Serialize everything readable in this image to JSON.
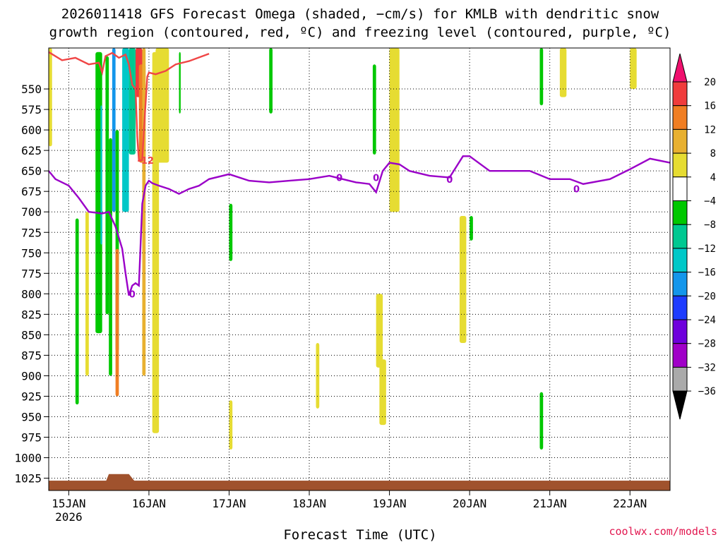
{
  "chart_data": {
    "type": "heatmap",
    "title_line1": "2026011418 GFS Forecast Omega (shaded, −cm/s) for KMLB with dendritic snow",
    "title_line2": "growth region (contoured, red, ºC) and freezing level (contoured, purple, ºC)",
    "xlabel": "Forecast Time (UTC)",
    "credit": "coolwx.com/models",
    "x_range": [
      "2026-01-14T18:00",
      "2026-01-22T12:00"
    ],
    "x_ticks": [
      {
        "label": "15JAN",
        "sub": "2026",
        "time": "2026-01-15T00:00"
      },
      {
        "label": "16JAN",
        "sub": "",
        "time": "2026-01-16T00:00"
      },
      {
        "label": "17JAN",
        "sub": "",
        "time": "2026-01-17T00:00"
      },
      {
        "label": "18JAN",
        "sub": "",
        "time": "2026-01-18T00:00"
      },
      {
        "label": "19JAN",
        "sub": "",
        "time": "2026-01-19T00:00"
      },
      {
        "label": "20JAN",
        "sub": "",
        "time": "2026-01-20T00:00"
      },
      {
        "label": "21JAN",
        "sub": "",
        "time": "2026-01-21T00:00"
      },
      {
        "label": "22JAN",
        "sub": "",
        "time": "2026-01-22T00:00"
      }
    ],
    "y_ticks": [
      "550",
      "575",
      "600",
      "625",
      "650",
      "675",
      "700",
      "725",
      "750",
      "775",
      "800",
      "825",
      "850",
      "875",
      "900",
      "925",
      "950",
      "975",
      "1000",
      "1025"
    ],
    "y_range_hpa": [
      500,
      1040
    ],
    "grid": true,
    "colorbar": {
      "labels": [
        "20",
        "16",
        "12",
        "8",
        "4",
        "−4",
        "−8",
        "−12",
        "−16",
        "−20",
        "−24",
        "−28",
        "−32",
        "−36"
      ],
      "colors": [
        "#f0106e",
        "#f03c3c",
        "#f07e23",
        "#e8b030",
        "#e6dc32",
        "#ffffff",
        "#00c800",
        "#00c891",
        "#00c8c8",
        "#1496eb",
        "#1e3cff",
        "#6e00dc",
        "#a000c8",
        "#aaaaaa",
        "#000000"
      ]
    },
    "colors": {
      "yellow": "#e6dc32",
      "gold": "#e8b030",
      "orange": "#f07e23",
      "red": "#f03c3c",
      "green": "#00c800",
      "teal": "#00c891",
      "cyan": "#00c8c8",
      "blue": "#1496eb",
      "navy": "#1e3cff",
      "dendritic_contour": "#f04646",
      "freezing_contour": "#9a00c8",
      "terrain": "#a0522d"
    },
    "contour_labels": [
      {
        "text": "-12",
        "color": "dendritic_contour",
        "time": "2026-01-15T23:00",
        "p": 637
      },
      {
        "text": "0",
        "color": "freezing_contour",
        "time": "2026-01-15T19:00",
        "p": 800
      },
      {
        "text": "0",
        "color": "freezing_contour",
        "time": "2026-01-18T09:00",
        "p": 658
      },
      {
        "text": "0",
        "color": "freezing_contour",
        "time": "2026-01-18T20:00",
        "p": 658
      },
      {
        "text": "0",
        "color": "freezing_contour",
        "time": "2026-01-19T18:00",
        "p": 660
      },
      {
        "text": "0",
        "color": "freezing_contour",
        "time": "2026-01-21T08:00",
        "p": 672
      }
    ],
    "freezing_level_hpa": {
      "time": [
        "2026-01-14T18:00",
        "2026-01-14T20:00",
        "2026-01-15T00:00",
        "2026-01-15T03:00",
        "2026-01-15T06:00",
        "2026-01-15T10:00",
        "2026-01-15T12:00",
        "2026-01-15T14:00",
        "2026-01-15T16:00",
        "2026-01-15T17:00",
        "2026-01-15T18:00",
        "2026-01-15T19:00",
        "2026-01-15T20:00",
        "2026-01-15T21:00",
        "2026-01-15T22:00",
        "2026-01-15T23:00",
        "2026-01-16T00:00",
        "2026-01-16T01:00",
        "2026-01-16T03:00",
        "2026-01-16T06:00",
        "2026-01-16T09:00",
        "2026-01-16T12:00",
        "2026-01-16T15:00",
        "2026-01-16T18:00",
        "2026-01-17T00:00",
        "2026-01-17T06:00",
        "2026-01-17T12:00",
        "2026-01-17T18:00",
        "2026-01-18T00:00",
        "2026-01-18T06:00",
        "2026-01-18T10:00",
        "2026-01-18T14:00",
        "2026-01-18T18:00",
        "2026-01-18T20:00",
        "2026-01-18T22:00",
        "2026-01-19T00:00",
        "2026-01-19T03:00",
        "2026-01-19T06:00",
        "2026-01-19T12:00",
        "2026-01-19T18:00",
        "2026-01-19T22:00",
        "2026-01-20T00:00",
        "2026-01-20T06:00",
        "2026-01-20T12:00",
        "2026-01-20T18:00",
        "2026-01-21T00:00",
        "2026-01-21T06:00",
        "2026-01-21T10:00",
        "2026-01-21T18:00",
        "2026-01-22T00:00",
        "2026-01-22T06:00",
        "2026-01-22T12:00"
      ],
      "p": [
        650,
        660,
        668,
        683,
        700,
        702,
        700,
        718,
        745,
        775,
        802,
        790,
        787,
        790,
        690,
        668,
        662,
        665,
        668,
        672,
        678,
        672,
        668,
        660,
        654,
        662,
        664,
        662,
        660,
        656,
        660,
        664,
        666,
        676,
        650,
        640,
        642,
        650,
        656,
        658,
        632,
        632,
        650,
        650,
        650,
        660,
        660,
        666,
        660,
        648,
        635,
        640
      ]
    },
    "dendritic_level_hpa": {
      "time": [
        "2026-01-14T18:00",
        "2026-01-14T22:00",
        "2026-01-15T02:00",
        "2026-01-15T06:00",
        "2026-01-15T09:00",
        "2026-01-15T10:00",
        "2026-01-15T11:00",
        "2026-01-15T13:00",
        "2026-01-15T15:00",
        "2026-01-15T17:00",
        "2026-01-15T18:00",
        "2026-01-15T19:00",
        "2026-01-15T20:00",
        "2026-01-15T20:30",
        "2026-01-15T21:00",
        "2026-01-15T22:00",
        "2026-01-15T22:30",
        "2026-01-15T23:30",
        "2026-01-16T00:00",
        "2026-01-16T02:00",
        "2026-01-16T05:00",
        "2026-01-16T08:00",
        "2026-01-16T12:00",
        "2026-01-16T18:00"
      ],
      "p": [
        505,
        515,
        512,
        520,
        518,
        530,
        510,
        506,
        512,
        508,
        520,
        545,
        550,
        608,
        637,
        637,
        600,
        535,
        530,
        532,
        528,
        520,
        516,
        507
      ]
    },
    "omega_patches": [
      {
        "color": "green",
        "time": [
          "2026-01-15T02:00",
          "2026-01-15T03:00"
        ],
        "p": [
          708,
          935
        ]
      },
      {
        "color": "green",
        "time": [
          "2026-01-15T08:00",
          "2026-01-15T10:00"
        ],
        "p": [
          505,
          848
        ]
      },
      {
        "color": "cyan",
        "time": [
          "2026-01-15T09:30",
          "2026-01-15T10:00"
        ],
        "p": [
          570,
          740
        ]
      },
      {
        "color": "green",
        "time": [
          "2026-01-15T11:00",
          "2026-01-15T12:00"
        ],
        "p": [
          510,
          825
        ]
      },
      {
        "color": "green",
        "time": [
          "2026-01-15T12:00",
          "2026-01-15T13:00"
        ],
        "p": [
          610,
          900
        ]
      },
      {
        "color": "blue",
        "time": [
          "2026-01-15T13:00",
          "2026-01-15T14:00"
        ],
        "p": [
          500,
          700
        ]
      },
      {
        "color": "green",
        "time": [
          "2026-01-15T14:00",
          "2026-01-15T15:00"
        ],
        "p": [
          600,
          870
        ]
      },
      {
        "color": "cyan",
        "time": [
          "2026-01-15T16:00",
          "2026-01-15T18:00"
        ],
        "p": [
          500,
          700
        ]
      },
      {
        "color": "teal",
        "time": [
          "2026-01-15T18:00",
          "2026-01-15T20:00"
        ],
        "p": [
          500,
          630
        ]
      },
      {
        "color": "red",
        "time": [
          "2026-01-15T20:00",
          "2026-01-15T22:00"
        ],
        "p": [
          500,
          560
        ]
      },
      {
        "color": "orange",
        "time": [
          "2026-01-15T21:00",
          "2026-01-15T23:00"
        ],
        "p": [
          520,
          640
        ]
      },
      {
        "color": "gold",
        "time": [
          "2026-01-15T22:00",
          "2026-01-15T23:00"
        ],
        "p": [
          500,
          900
        ]
      },
      {
        "color": "orange",
        "time": [
          "2026-01-15T14:00",
          "2026-01-15T15:00"
        ],
        "p": [
          745,
          925
        ]
      },
      {
        "color": "yellow",
        "time": [
          "2026-01-16T01:00",
          "2026-01-16T03:00"
        ],
        "p": [
          505,
          970
        ]
      },
      {
        "color": "yellow",
        "time": [
          "2026-01-16T02:00",
          "2026-01-16T06:00"
        ],
        "p": [
          500,
          640
        ]
      },
      {
        "color": "yellow",
        "time": [
          "2026-01-14T18:00",
          "2026-01-14T19:00"
        ],
        "p": [
          500,
          620
        ]
      },
      {
        "color": "yellow",
        "time": [
          "2026-01-15T05:00",
          "2026-01-15T06:00"
        ],
        "p": [
          700,
          900
        ]
      },
      {
        "color": "green",
        "time": [
          "2026-01-16T09:00",
          "2026-01-16T09:30"
        ],
        "p": [
          505,
          580
        ]
      },
      {
        "color": "green",
        "time": [
          "2026-01-17T00:00",
          "2026-01-17T01:00"
        ],
        "p": [
          690,
          760
        ]
      },
      {
        "color": "yellow",
        "time": [
          "2026-01-17T00:00",
          "2026-01-17T01:00"
        ],
        "p": [
          930,
          990
        ]
      },
      {
        "color": "green",
        "time": [
          "2026-01-17T12:00",
          "2026-01-17T13:00"
        ],
        "p": [
          500,
          580
        ]
      },
      {
        "color": "yellow",
        "time": [
          "2026-01-18T02:00",
          "2026-01-18T03:00"
        ],
        "p": [
          860,
          940
        ]
      },
      {
        "color": "green",
        "time": [
          "2026-01-18T19:00",
          "2026-01-18T20:00"
        ],
        "p": [
          520,
          630
        ]
      },
      {
        "color": "yellow",
        "time": [
          "2026-01-18T20:00",
          "2026-01-18T22:00"
        ],
        "p": [
          800,
          890
        ]
      },
      {
        "color": "yellow",
        "time": [
          "2026-01-18T21:00",
          "2026-01-18T23:00"
        ],
        "p": [
          880,
          960
        ]
      },
      {
        "color": "yellow",
        "time": [
          "2026-01-19T00:00",
          "2026-01-19T03:00"
        ],
        "p": [
          500,
          700
        ]
      },
      {
        "color": "yellow",
        "time": [
          "2026-01-19T21:00",
          "2026-01-19T23:00"
        ],
        "p": [
          705,
          860
        ]
      },
      {
        "color": "green",
        "time": [
          "2026-01-20T00:00",
          "2026-01-20T01:00"
        ],
        "p": [
          705,
          735
        ]
      },
      {
        "color": "green",
        "time": [
          "2026-01-20T21:00",
          "2026-01-20T22:00"
        ],
        "p": [
          500,
          570
        ]
      },
      {
        "color": "yellow",
        "time": [
          "2026-01-21T03:00",
          "2026-01-21T05:00"
        ],
        "p": [
          500,
          560
        ]
      },
      {
        "color": "green",
        "time": [
          "2026-01-20T21:00",
          "2026-01-20T22:00"
        ],
        "p": [
          920,
          990
        ]
      },
      {
        "color": "yellow",
        "time": [
          "2026-01-22T00:00",
          "2026-01-22T02:00"
        ],
        "p": [
          500,
          550
        ]
      }
    ]
  }
}
